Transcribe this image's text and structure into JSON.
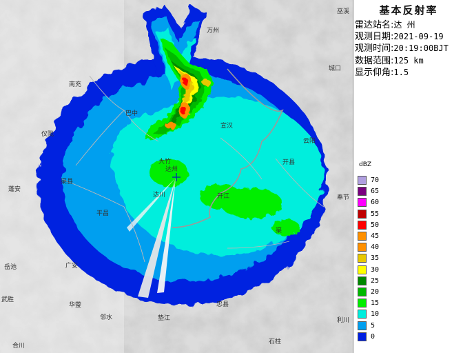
{
  "panel": {
    "title": "基本反射率",
    "rows": [
      {
        "key": "雷达站名:",
        "value": "达 州"
      },
      {
        "key": "观测日期:",
        "value": "2021-09-19"
      },
      {
        "key": "观测时间:",
        "value": "20:19:00BJT"
      },
      {
        "key": "数据范围:",
        "value": "125 km"
      },
      {
        "key": "显示仰角:",
        "value": "1.5"
      }
    ]
  },
  "legend": {
    "unit": "dBZ",
    "items": [
      {
        "label": "70",
        "color": "#b09fe0"
      },
      {
        "label": "65",
        "color": "#7a0080"
      },
      {
        "label": "60",
        "color": "#ff00ff"
      },
      {
        "label": "55",
        "color": "#c00000"
      },
      {
        "label": "50",
        "color": "#ff0000"
      },
      {
        "label": "45",
        "color": "#ff9000"
      },
      {
        "label": "40",
        "color": "#ff9000"
      },
      {
        "label": "35",
        "color": "#e8c800"
      },
      {
        "label": "30",
        "color": "#ffff00"
      },
      {
        "label": "25",
        "color": "#008800"
      },
      {
        "label": "20",
        "color": "#00b800"
      },
      {
        "label": "15",
        "color": "#00ee00"
      },
      {
        "label": "10",
        "color": "#00eedd"
      },
      {
        "label": "5",
        "color": "#009fef"
      },
      {
        "label": "0",
        "color": "#0020e0"
      }
    ]
  },
  "places": [
    {
      "id": "nanchong",
      "name": "南充"
    },
    {
      "id": "bazhong",
      "name": "巴中"
    },
    {
      "id": "pingchang",
      "name": "平昌"
    },
    {
      "id": "chengkou",
      "name": "城口"
    },
    {
      "id": "yilong",
      "name": "仪陇"
    },
    {
      "id": "xuanhan",
      "name": "宣汉"
    },
    {
      "id": "kaixian",
      "name": "开县"
    },
    {
      "id": "dazhou",
      "name": "达州"
    },
    {
      "id": "dachuan",
      "name": "达川"
    },
    {
      "id": "kaijiang",
      "name": "开江"
    },
    {
      "id": "xi-an",
      "name": "蓬安"
    },
    {
      "id": "yuechi",
      "name": "岳池"
    },
    {
      "id": "guang-an",
      "name": "广安"
    },
    {
      "id": "huaying",
      "name": "华蓥"
    },
    {
      "id": "linshui",
      "name": "邻水"
    },
    {
      "id": "dianjiang",
      "name": "垫江"
    },
    {
      "id": "zhongxian",
      "name": "忠县"
    },
    {
      "id": "shizhu",
      "name": "石柱"
    },
    {
      "id": "lichuan",
      "name": "利川"
    },
    {
      "id": "hechuan",
      "name": "合川"
    },
    {
      "id": "wusheng",
      "name": "武胜"
    },
    {
      "id": "fengjie",
      "name": "奉节"
    },
    {
      "id": "wuxi",
      "name": "巫溪"
    },
    {
      "id": "yunyang",
      "name": "云阳"
    },
    {
      "id": "wanzhou",
      "name": "万州"
    },
    {
      "id": "dazhu",
      "name": "大竹"
    },
    {
      "id": "quxian",
      "name": "渠县"
    },
    {
      "id": "qu",
      "name": "渠"
    }
  ],
  "radar_center_icon": "plus-icon"
}
